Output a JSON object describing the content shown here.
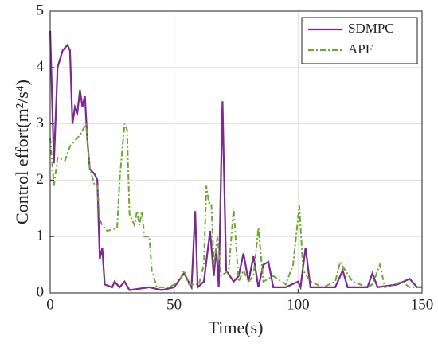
{
  "chart_data": {
    "type": "line",
    "xlabel": "Time(s)",
    "ylabel": "Control effort(m²/s⁴)",
    "xlim": [
      0,
      150
    ],
    "xticks": [
      0,
      50,
      100,
      150
    ],
    "ylim": [
      0,
      5
    ],
    "yticks": [
      0,
      1,
      2,
      3,
      4,
      5
    ],
    "grid": true,
    "legend": "upper right",
    "series": [
      {
        "name": "SDMPC",
        "color": "#7b2a8f",
        "dash": "solid",
        "x": [
          0,
          1.5,
          3,
          5,
          7,
          8,
          9,
          10,
          11,
          12,
          13,
          14,
          15,
          16,
          18,
          19,
          20,
          21,
          22,
          25,
          26,
          28,
          30,
          32,
          40,
          45,
          50,
          54,
          57,
          58.5,
          59.5,
          62,
          64.5,
          66,
          67,
          68,
          69.5,
          71,
          74,
          76,
          78,
          80,
          82,
          84,
          86,
          88,
          90,
          95,
          100,
          101,
          103,
          105,
          115,
          118,
          120,
          128,
          130,
          132,
          140,
          145,
          148,
          150
        ],
        "values": [
          4.65,
          2.3,
          4.0,
          4.3,
          4.4,
          4.3,
          3.0,
          3.3,
          3.2,
          3.6,
          3.3,
          3.5,
          2.7,
          2.2,
          2.1,
          2.0,
          0.6,
          0.8,
          0.15,
          0.1,
          0.2,
          0.1,
          0.2,
          0.05,
          0.1,
          0.05,
          0.1,
          0.35,
          0.1,
          1.45,
          0.1,
          0.2,
          1.1,
          0.3,
          0.8,
          0.1,
          3.4,
          0.4,
          0.2,
          0.3,
          0.7,
          0.2,
          0.65,
          0.1,
          0.5,
          0.55,
          0.1,
          0.1,
          0.2,
          0.1,
          0.8,
          0.1,
          0.1,
          0.4,
          0.1,
          0.1,
          0.35,
          0.1,
          0.15,
          0.25,
          0.1,
          0.1
        ]
      },
      {
        "name": "APF",
        "color": "#6aaa2e",
        "dash": "dashdot",
        "x": [
          0,
          1.5,
          3,
          6,
          8,
          10,
          12,
          14.5,
          16,
          18,
          19,
          20,
          21,
          23,
          27,
          28,
          30,
          31,
          32,
          34,
          35,
          36,
          37,
          38,
          40,
          41,
          43,
          48,
          52,
          54,
          56,
          60,
          62,
          63,
          64,
          65,
          66,
          67.5,
          69,
          72,
          74,
          76,
          78,
          80,
          82,
          84,
          86,
          90,
          95,
          98,
          100.5,
          102,
          105,
          110,
          115,
          117,
          119,
          122,
          128,
          130,
          133,
          135,
          142,
          145,
          150
        ],
        "values": [
          2.75,
          1.9,
          2.4,
          2.35,
          2.6,
          2.7,
          2.8,
          3.0,
          2.2,
          1.9,
          1.9,
          1.3,
          1.2,
          1.1,
          1.15,
          2.0,
          3.0,
          2.9,
          1.4,
          1.2,
          1.45,
          1.2,
          1.45,
          1.0,
          1.0,
          0.4,
          0.1,
          0.1,
          0.2,
          0.4,
          0.15,
          0.15,
          0.5,
          1.9,
          1.6,
          1.6,
          0.5,
          1.0,
          0.3,
          0.4,
          1.5,
          0.2,
          0.4,
          0.2,
          0.3,
          1.15,
          0.2,
          0.3,
          0.15,
          0.5,
          1.55,
          0.4,
          0.2,
          0.1,
          0.2,
          0.55,
          0.4,
          0.2,
          0.1,
          0.15,
          0.5,
          0.1,
          0.2,
          0.1,
          0.1
        ]
      }
    ]
  }
}
